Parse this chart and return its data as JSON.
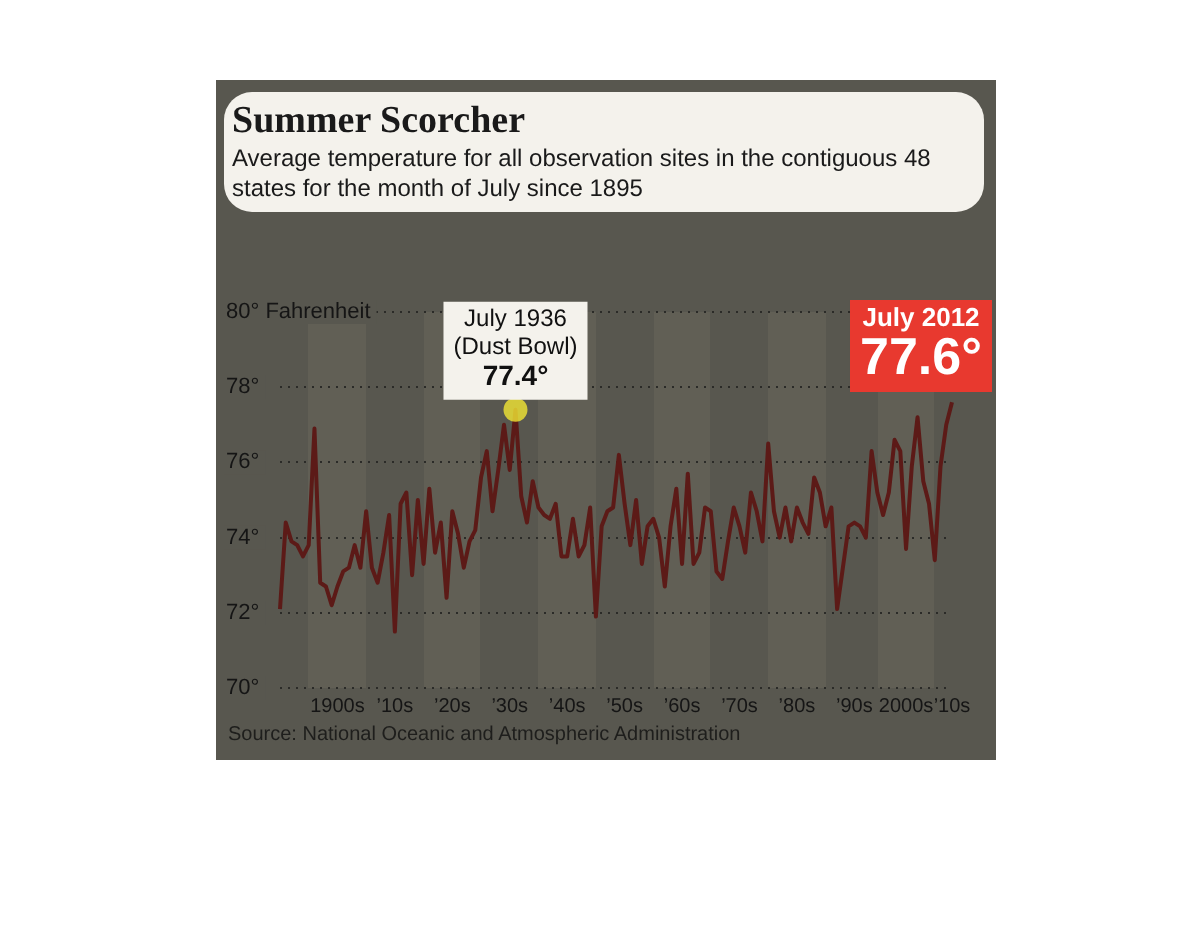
{
  "chart_data": {
    "type": "line",
    "title": "Summer Scorcher",
    "subtitle": "Average temperature for all observation sites in the contiguous 48 states for the month of July since 1895",
    "categories": [
      null,
      null,
      null,
      null,
      null,
      null,
      null,
      null,
      null,
      null,
      "1900s",
      null,
      null,
      null,
      null,
      null,
      null,
      null,
      null,
      null,
      "’10s",
      null,
      null,
      null,
      null,
      null,
      null,
      null,
      null,
      null,
      "’20s",
      null,
      null,
      null,
      null,
      null,
      null,
      null,
      null,
      null,
      "’30s",
      null,
      null,
      null,
      null,
      null,
      null,
      null,
      null,
      null,
      "’40s",
      null,
      null,
      null,
      null,
      null,
      null,
      null,
      null,
      null,
      "’50s",
      null,
      null,
      null,
      null,
      null,
      null,
      null,
      null,
      null,
      "’60s",
      null,
      null,
      null,
      null,
      null,
      null,
      null,
      null,
      null,
      "’70s",
      null,
      null,
      null,
      null,
      null,
      null,
      null,
      null,
      null,
      "’80s",
      null,
      null,
      null,
      null,
      null,
      null,
      null,
      null,
      null,
      "’90s",
      null,
      null,
      null,
      null,
      null,
      null,
      null,
      null,
      "2000s",
      null,
      null,
      null,
      null,
      null,
      null,
      null,
      "’10s"
    ],
    "series": [
      {
        "color": "#5c1a17",
        "values": [
          72.1,
          74.4,
          73.9,
          73.8,
          73.5,
          73.8,
          76.9,
          72.8,
          72.7,
          72.2,
          72.7,
          73.1,
          73.2,
          73.8,
          73.2,
          74.7,
          73.2,
          72.8,
          73.6,
          74.6,
          71.5,
          74.9,
          75.2,
          73.0,
          75.0,
          73.3,
          75.3,
          73.6,
          74.4,
          72.4,
          74.7,
          74.1,
          73.2,
          73.9,
          74.2,
          75.6,
          76.3,
          74.7,
          75.8,
          77.0,
          75.8,
          77.4,
          75.1,
          74.4,
          75.5,
          74.8,
          74.6,
          74.5,
          74.9,
          73.5,
          73.5,
          74.5,
          73.5,
          73.8,
          74.8,
          71.9,
          74.3,
          74.7,
          74.8,
          76.2,
          74.9,
          73.8,
          75.0,
          73.3,
          74.3,
          74.5,
          74.0,
          72.7,
          74.3,
          75.3,
          73.3,
          75.7,
          73.3,
          73.6,
          74.8,
          74.7,
          73.1,
          72.9,
          73.9,
          74.8,
          74.3,
          73.6,
          75.2,
          74.7,
          73.9,
          76.5,
          74.7,
          74.0,
          74.8,
          73.9,
          74.8,
          74.4,
          74.1,
          75.6,
          75.2,
          74.3,
          74.8,
          72.1,
          73.2,
          74.3,
          74.4,
          74.3,
          74.0,
          76.3,
          75.2,
          74.6,
          75.2,
          76.6,
          76.3,
          73.7,
          75.9,
          77.2,
          75.5,
          74.9,
          73.4,
          75.9,
          77.0,
          77.6
        ]
      }
    ],
    "ylim": [
      70,
      80
    ],
    "yticks": [
      {
        "value": 70,
        "label": "70°"
      },
      {
        "value": 72,
        "label": "72°"
      },
      {
        "value": 74,
        "label": "74°"
      },
      {
        "value": 76,
        "label": "76°"
      },
      {
        "value": 78,
        "label": "78°"
      },
      {
        "value": 80,
        "label": "80° Fahrenheit"
      }
    ],
    "grid": "y",
    "legend": false,
    "marker": "none",
    "line_style": "solid",
    "annotations": [
      {
        "text": "July 1936\n(Dust Bowl)\n77.4°",
        "y": 77.4
      },
      "July 2012\n77.6°",
      "Source: National Oceanic and Atmospheric Administration"
    ]
  }
}
